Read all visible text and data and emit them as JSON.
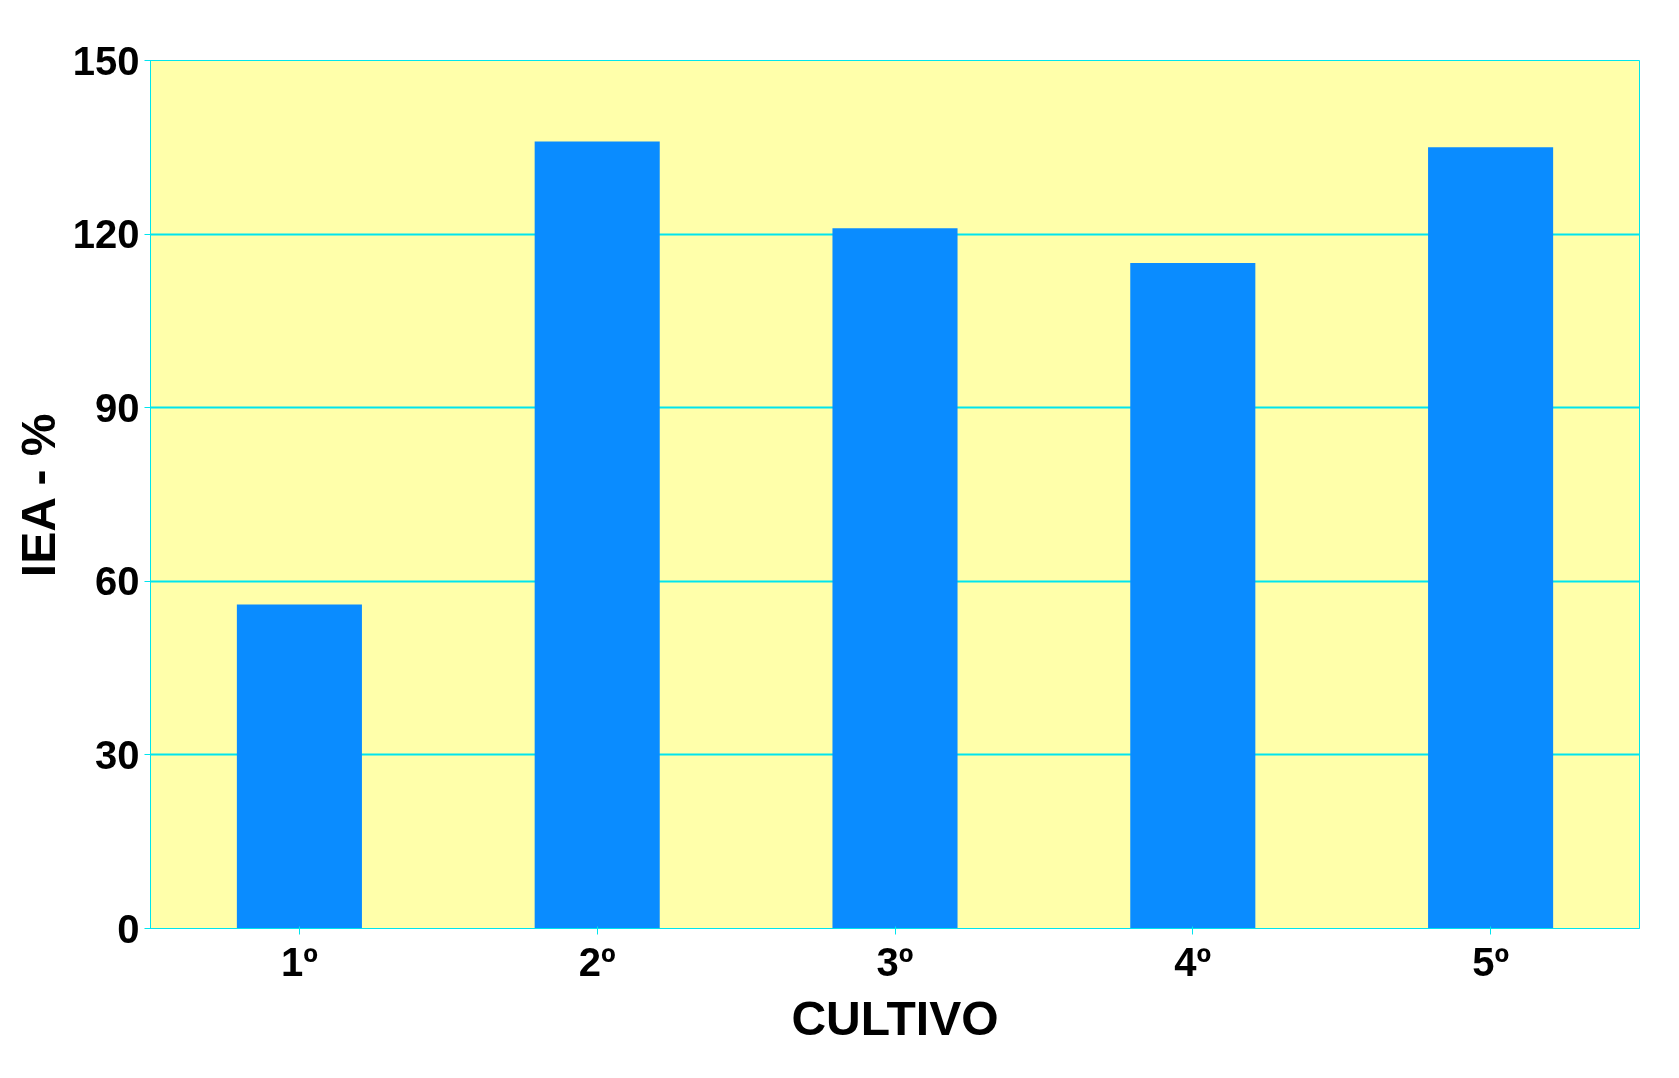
{
  "chart_data": {
    "type": "bar",
    "xlabel": "CULTIVO",
    "ylabel": "IEA - %",
    "categories": [
      "1º",
      "2º",
      "3º",
      "4º",
      "5º"
    ],
    "values": [
      56,
      136,
      121,
      115,
      135
    ],
    "color": "#0a8cff",
    "ylim": [
      0,
      150
    ],
    "yticks": [
      0,
      30,
      60,
      90,
      120,
      150
    ],
    "grid": "y"
  }
}
